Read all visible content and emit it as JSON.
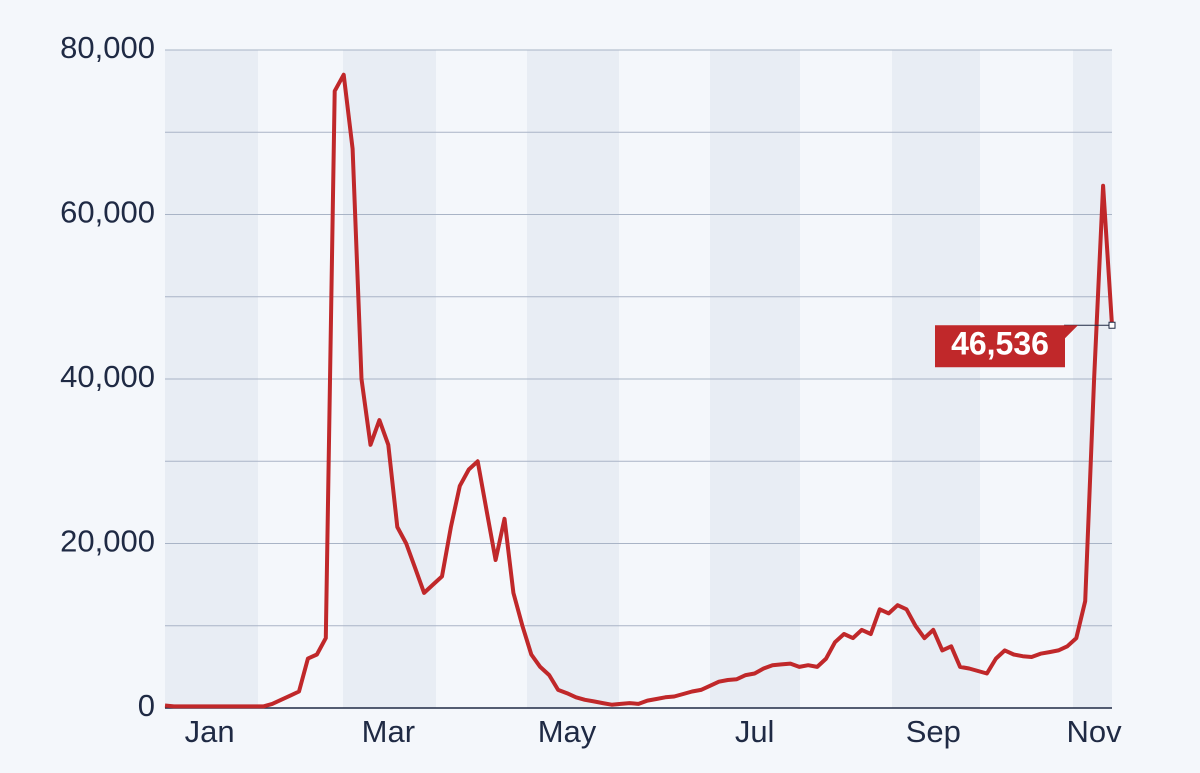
{
  "chart_data": {
    "type": "line",
    "categories": [
      null,
      null,
      null,
      null,
      null,
      "Jan",
      null,
      null,
      null,
      null,
      null,
      null,
      null,
      null,
      null,
      null,
      null,
      null,
      null,
      null,
      null,
      null,
      null,
      null,
      null,
      "Mar",
      null,
      null,
      null,
      null,
      null,
      null,
      null,
      null,
      null,
      null,
      null,
      null,
      null,
      null,
      null,
      null,
      null,
      null,
      null,
      "May",
      null,
      null,
      null,
      null,
      null,
      null,
      null,
      null,
      null,
      null,
      null,
      null,
      null,
      null,
      null,
      null,
      null,
      null,
      null,
      null,
      "Jul",
      null,
      null,
      null,
      null,
      null,
      null,
      null,
      null,
      null,
      null,
      null,
      null,
      null,
      null,
      null,
      null,
      null,
      null,
      null,
      "Sep",
      null,
      null,
      null,
      null,
      null,
      null,
      null,
      null,
      null,
      null,
      null,
      null,
      null,
      null,
      null,
      null,
      null,
      "Nov",
      null,
      null
    ],
    "series": [
      {
        "color": "#c0282a",
        "values": [
          300,
          200,
          200,
          200,
          200,
          200,
          200,
          200,
          200,
          200,
          200,
          200,
          500,
          1000,
          1500,
          2000,
          6000,
          6500,
          8500,
          75000,
          77000,
          68000,
          40000,
          32000,
          35000,
          32000,
          22000,
          20000,
          17000,
          14000,
          15000,
          16000,
          22000,
          27000,
          29000,
          30000,
          24000,
          18000,
          23000,
          14000,
          10000,
          6500,
          5000,
          4000,
          2200,
          1800,
          1300,
          1000,
          800,
          600,
          400,
          500,
          600,
          500,
          900,
          1100,
          1300,
          1400,
          1700,
          2000,
          2200,
          2700,
          3200,
          3400,
          3500,
          4000,
          4200,
          4800,
          5200,
          5300,
          5400,
          5000,
          5200,
          5000,
          6000,
          8000,
          9000,
          8500,
          9500,
          9000,
          12000,
          11500,
          12500,
          12000,
          10000,
          8500,
          9500,
          7000,
          7500,
          5000,
          4800,
          4500,
          4200,
          6000,
          7000,
          6500,
          6300,
          6200,
          6600,
          6800,
          7000,
          7500,
          8500,
          13000,
          40000,
          63500,
          46536
        ],
        "value_labels": [
          null,
          null,
          null,
          null,
          null,
          null,
          null,
          null,
          null,
          null,
          null,
          null,
          null,
          null,
          null,
          null,
          null,
          null,
          null,
          null,
          null,
          null,
          null,
          null,
          null,
          null,
          null,
          null,
          null,
          null,
          null,
          null,
          null,
          null,
          null,
          null,
          null,
          null,
          null,
          null,
          null,
          null,
          null,
          null,
          null,
          null,
          null,
          null,
          null,
          null,
          null,
          null,
          null,
          null,
          null,
          null,
          null,
          null,
          null,
          null,
          null,
          null,
          null,
          null,
          null,
          null,
          null,
          null,
          null,
          null,
          null,
          null,
          null,
          null,
          null,
          null,
          null,
          null,
          null,
          null,
          null,
          null,
          null,
          null,
          null,
          null,
          null,
          null,
          null,
          null,
          null,
          null,
          null,
          null,
          null,
          null,
          null,
          null,
          null,
          null,
          null,
          null,
          null,
          null,
          null,
          null,
          "46,536"
        ]
      }
    ],
    "ylim": [
      0,
      80000
    ],
    "yticks": [
      {
        "value": 0,
        "label": "0"
      },
      {
        "value": 20000,
        "label": "20,000"
      },
      {
        "value": 40000,
        "label": "40,000"
      },
      {
        "value": 60000,
        "label": "60,000"
      },
      {
        "value": 80000,
        "label": "80,000"
      }
    ],
    "minor_yticks": [
      10000,
      30000,
      50000,
      70000
    ],
    "grid": true
  }
}
